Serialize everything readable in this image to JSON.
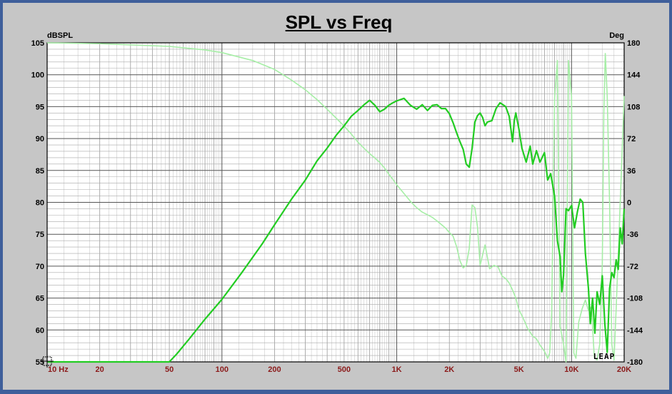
{
  "chart_data": {
    "type": "line",
    "title": "SPL vs Freq",
    "ylabel_left": "dBSPL",
    "ylabel_right": "Deg",
    "x_scale": "log",
    "xlim": [
      10,
      20000
    ],
    "ylim_left": [
      55,
      105
    ],
    "ylim_right": [
      -180,
      180
    ],
    "grid": true,
    "watermark": "LEAP",
    "x_tick_labels": [
      {
        "value": 10,
        "label": "10 Hz"
      },
      {
        "value": 20,
        "label": "20"
      },
      {
        "value": 50,
        "label": "50"
      },
      {
        "value": 100,
        "label": "100"
      },
      {
        "value": 200,
        "label": "200"
      },
      {
        "value": 500,
        "label": "500"
      },
      {
        "value": 1000,
        "label": "1K"
      },
      {
        "value": 2000,
        "label": "2K"
      },
      {
        "value": 5000,
        "label": "5K"
      },
      {
        "value": 10000,
        "label": "10K"
      },
      {
        "value": 20000,
        "label": "20K"
      }
    ],
    "y_left_ticks": [
      105,
      100,
      95,
      90,
      85,
      80,
      75,
      70,
      65,
      60,
      55
    ],
    "y_right_ticks": [
      180,
      144,
      108,
      72,
      36,
      0,
      -36,
      -72,
      -108,
      -144,
      -180
    ],
    "series": [
      {
        "axis": "left",
        "color": "#22cc22",
        "x": [
          10,
          50,
          55,
          65,
          80,
          100,
          130,
          170,
          200,
          250,
          300,
          350,
          400,
          450,
          500,
          550,
          600,
          650,
          700,
          750,
          800,
          850,
          900,
          950,
          1000,
          1100,
          1200,
          1300,
          1400,
          1500,
          1600,
          1700,
          1800,
          1900,
          2000,
          2100,
          2200,
          2300,
          2400,
          2500,
          2600,
          2700,
          2800,
          2900,
          3000,
          3100,
          3200,
          3300,
          3500,
          3700,
          3900,
          4000,
          4200,
          4400,
          4600,
          4700,
          4800,
          5000,
          5200,
          5500,
          5800,
          6000,
          6300,
          6600,
          7000,
          7300,
          7600,
          8000,
          8300,
          8600,
          8800,
          9000,
          9300,
          9600,
          10000,
          10400,
          10800,
          11200,
          11600,
          12000,
          12500,
          12800,
          13200,
          13600,
          14000,
          14500,
          15000,
          15500,
          16000,
          16500,
          17000,
          17500,
          18000,
          18500,
          19000,
          19500,
          20000
        ],
        "y": [
          55,
          55,
          56.2,
          58.6,
          61.7,
          64.8,
          69,
          73.5,
          76.5,
          80.5,
          83.5,
          86.5,
          88.5,
          90.5,
          92,
          93.5,
          94.4,
          95.3,
          96,
          95.2,
          94.2,
          94.6,
          95.2,
          95.6,
          95.9,
          96.3,
          95.2,
          94.6,
          95.3,
          94.4,
          95.2,
          95.3,
          94.7,
          94.7,
          93.9,
          92.5,
          90.9,
          89.5,
          88.3,
          86,
          85.5,
          88.5,
          92.6,
          93.6,
          94,
          93.3,
          92,
          92.6,
          92.8,
          94.7,
          95.6,
          95.4,
          95,
          93.5,
          89.5,
          92.8,
          94,
          91.5,
          88.5,
          86.3,
          88.8,
          86,
          88.1,
          86.3,
          87.8,
          83.5,
          84.5,
          81,
          74,
          71.5,
          66,
          68.5,
          79,
          78.7,
          79.5,
          76,
          78.5,
          80.5,
          80,
          72,
          66.5,
          61,
          65,
          59.5,
          66,
          64,
          68.5,
          61,
          56.5,
          66.5,
          69,
          68.2,
          71,
          69.5,
          76,
          73.5,
          79
        ]
      },
      {
        "axis": "right",
        "color": "#a6eea6",
        "x": [
          10,
          20,
          50,
          80,
          100,
          150,
          200,
          250,
          300,
          350,
          400,
          450,
          500,
          550,
          600,
          650,
          700,
          750,
          800,
          850,
          900,
          950,
          1000,
          1100,
          1200,
          1300,
          1400,
          1500,
          1600,
          1700,
          1800,
          1900,
          2000,
          2100,
          2200,
          2300,
          2400,
          2500,
          2600,
          2700,
          2800,
          2900,
          3000,
          3200,
          3400,
          3600,
          3800,
          4000,
          4200,
          4400,
          4600,
          4800,
          5000,
          5300,
          5600,
          6000,
          6300,
          6600,
          7000,
          7300,
          7500,
          7700,
          8000,
          8300,
          8600,
          9000,
          9300,
          9600,
          10000,
          10300,
          10600,
          11000,
          11500,
          12000,
          12500,
          13000,
          13500,
          14000,
          14500,
          15000,
          15300,
          15600,
          16000,
          16500,
          17000,
          17500,
          18000,
          18500,
          19000,
          19500,
          20000
        ],
        "y": [
          180,
          179,
          176,
          172,
          169,
          160,
          150,
          138,
          127,
          116,
          105,
          95,
          86,
          77,
          68,
          61,
          55,
          50,
          45,
          39,
          32,
          26,
          20,
          10,
          1,
          -6,
          -11,
          -14,
          -17,
          -21,
          -25,
          -29,
          -34,
          -38,
          -50,
          -66,
          -74,
          -71,
          -52,
          -3,
          -6,
          -28,
          -71,
          -48,
          -75,
          -71,
          -73,
          -83,
          -86,
          -91,
          -99,
          -108,
          -121,
          -131,
          -142,
          -151,
          -154,
          -161,
          -168,
          -176,
          -170,
          -125,
          118,
          160,
          -140,
          -160,
          -180,
          160,
          120,
          -170,
          -176,
          -135,
          -120,
          -110,
          -122,
          -118,
          -175,
          -178,
          -160,
          -70,
          100,
          168,
          120,
          0,
          -160,
          -178,
          -120,
          -60,
          0,
          60,
          120
        ]
      }
    ]
  }
}
